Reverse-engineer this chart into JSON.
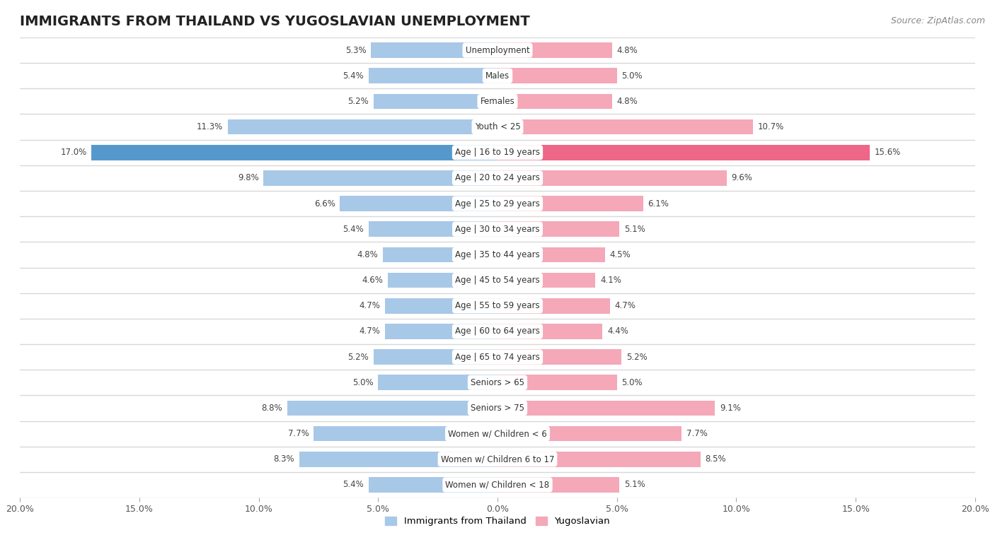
{
  "title": "IMMIGRANTS FROM THAILAND VS YUGOSLAVIAN UNEMPLOYMENT",
  "source": "Source: ZipAtlas.com",
  "categories": [
    "Unemployment",
    "Males",
    "Females",
    "Youth < 25",
    "Age | 16 to 19 years",
    "Age | 20 to 24 years",
    "Age | 25 to 29 years",
    "Age | 30 to 34 years",
    "Age | 35 to 44 years",
    "Age | 45 to 54 years",
    "Age | 55 to 59 years",
    "Age | 60 to 64 years",
    "Age | 65 to 74 years",
    "Seniors > 65",
    "Seniors > 75",
    "Women w/ Children < 6",
    "Women w/ Children 6 to 17",
    "Women w/ Children < 18"
  ],
  "thailand_values": [
    5.3,
    5.4,
    5.2,
    11.3,
    17.0,
    9.8,
    6.6,
    5.4,
    4.8,
    4.6,
    4.7,
    4.7,
    5.2,
    5.0,
    8.8,
    7.7,
    8.3,
    5.4
  ],
  "yugoslavian_values": [
    4.8,
    5.0,
    4.8,
    10.7,
    15.6,
    9.6,
    6.1,
    5.1,
    4.5,
    4.1,
    4.7,
    4.4,
    5.2,
    5.0,
    9.1,
    7.7,
    8.5,
    5.1
  ],
  "thailand_color": "#a8c8e8",
  "yugoslavian_color": "#f4a8b8",
  "thailand_highlight_color": "#5599cc",
  "yugoslavian_highlight_color": "#ee6688",
  "background_color": "#ffffff",
  "row_bg_color": "#ffffff",
  "separator_color": "#d8d8d8",
  "outer_bg_color": "#e8e8e8",
  "max_value": 20.0,
  "legend_thailand": "Immigrants from Thailand",
  "legend_yugoslavian": "Yugoslavian",
  "title_fontsize": 14,
  "source_fontsize": 9,
  "label_fontsize": 8.5,
  "value_fontsize": 8.5,
  "bar_height": 0.6,
  "axis_label_fontsize": 9,
  "xticks": [
    -20,
    -15,
    -10,
    -5,
    0,
    5,
    10,
    15,
    20
  ],
  "xtick_labels": [
    "20.0%",
    "15.0%",
    "10.0%",
    "5.0%",
    "0.0%",
    "5.0%",
    "10.0%",
    "15.0%",
    "20.0%"
  ]
}
